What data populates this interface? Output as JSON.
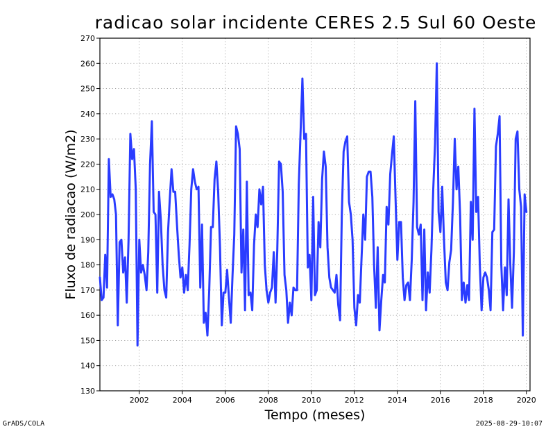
{
  "chart_data": {
    "type": "line",
    "title": "radicao solar incidente CERES 2.5 Sul 60 Oeste",
    "xlabel": "Tempo (meses)",
    "ylabel": "Fluxo de radiacao (W/m2)",
    "xlim": [
      2000.17,
      2020.17
    ],
    "ylim": [
      130,
      270
    ],
    "yticks": [
      130,
      140,
      150,
      160,
      170,
      180,
      190,
      200,
      210,
      220,
      230,
      240,
      250,
      260,
      270
    ],
    "xticks": [
      2002,
      2004,
      2006,
      2008,
      2010,
      2012,
      2014,
      2016,
      2018,
      2020
    ],
    "xtick_labels": [
      "2002",
      "2004",
      "2006",
      "2008",
      "2010",
      "2012",
      "2014",
      "2016",
      "2018",
      "2020"
    ],
    "grid": true,
    "series": [
      {
        "name": "radiacao",
        "color": "#2a3cff",
        "start": 2000.17,
        "step": 0.08333,
        "values": [
          175,
          166,
          167,
          184,
          171,
          222,
          207,
          208,
          206,
          200,
          156,
          189,
          190,
          177,
          183,
          165,
          190,
          232,
          222,
          226,
          210,
          148,
          190,
          177,
          180,
          176,
          170,
          185,
          220,
          237,
          201,
          200,
          169,
          209,
          198,
          180,
          170,
          167,
          193,
          206,
          218,
          209,
          209,
          196,
          184,
          175,
          179,
          169,
          176,
          170,
          188,
          210,
          218,
          213,
          210,
          211,
          171,
          196,
          157,
          161,
          152,
          170,
          195,
          195,
          214,
          221,
          209,
          187,
          156,
          169,
          169,
          178,
          167,
          157,
          176,
          192,
          235,
          232,
          226,
          177,
          194,
          162,
          213,
          168,
          169,
          162,
          188,
          200,
          195,
          210,
          204,
          211,
          180,
          170,
          165,
          169,
          171,
          185,
          165,
          186,
          221,
          220,
          209,
          176,
          170,
          157,
          165,
          160,
          171,
          170,
          170,
          212,
          233,
          254,
          230,
          232,
          179,
          184,
          166,
          207,
          168,
          170,
          197,
          187,
          214,
          225,
          219,
          187,
          175,
          171,
          170,
          169,
          176,
          164,
          158,
          200,
          225,
          229,
          231,
          205,
          200,
          190,
          163,
          156,
          168,
          165,
          183,
          200,
          190,
          215,
          217,
          217,
          207,
          180,
          163,
          187,
          154,
          166,
          176,
          173,
          203,
          196,
          216,
          224,
          231,
          206,
          182,
          197,
          197,
          175,
          166,
          172,
          173,
          166,
          182,
          205,
          245,
          195,
          192,
          196,
          166,
          194,
          162,
          177,
          169,
          186,
          210,
          228,
          260,
          201,
          193,
          211,
          190,
          173,
          170,
          181,
          186,
          205,
          230,
          210,
          219,
          200,
          166,
          173,
          165,
          172,
          166,
          205,
          190,
          242,
          201,
          207,
          180,
          162,
          175,
          177,
          175,
          170,
          162,
          193,
          194,
          227,
          232,
          239,
          180,
          162,
          179,
          168,
          206,
          180,
          163,
          185,
          230,
          233,
          210,
          203,
          152,
          208,
          201
        ]
      }
    ]
  },
  "footer": {
    "left": "GrADS/COLA",
    "right": "2025-08-29-10:07"
  }
}
